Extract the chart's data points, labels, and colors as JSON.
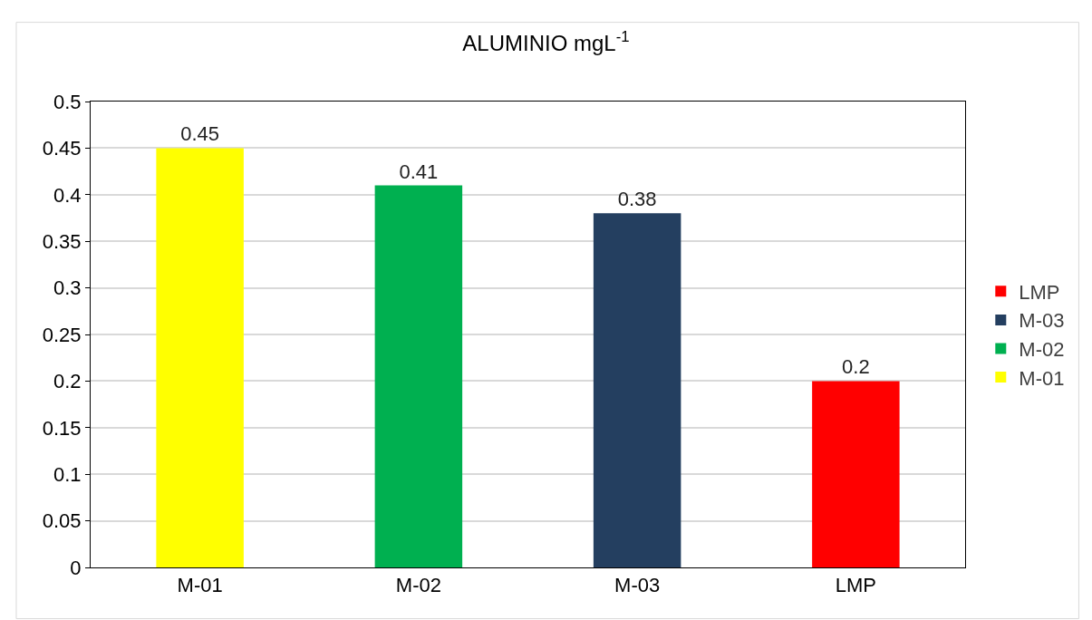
{
  "chart_data": {
    "type": "bar",
    "title": "ALUMINIO mgL$^{-1}$",
    "categories": [
      "M-01",
      "M-02",
      "M-03",
      "LMP"
    ],
    "series": [
      {
        "name": "M-01",
        "color": "#ffff00",
        "values": [
          0.45,
          null,
          null,
          null
        ]
      },
      {
        "name": "M-02",
        "color": "#00b050",
        "values": [
          null,
          0.41,
          null,
          null
        ]
      },
      {
        "name": "M-03",
        "color": "#243f60",
        "values": [
          null,
          null,
          0.38,
          null
        ]
      },
      {
        "name": "LMP",
        "color": "#ff0000",
        "values": [
          null,
          null,
          null,
          0.2
        ]
      }
    ],
    "ylim": [
      0,
      0.5
    ],
    "yticks": [
      0,
      0.05,
      0.1,
      0.15,
      0.2,
      0.25,
      0.3,
      0.35,
      0.4,
      0.45,
      0.5
    ],
    "grid": "y",
    "legend": "right",
    "data_labels": true
  }
}
